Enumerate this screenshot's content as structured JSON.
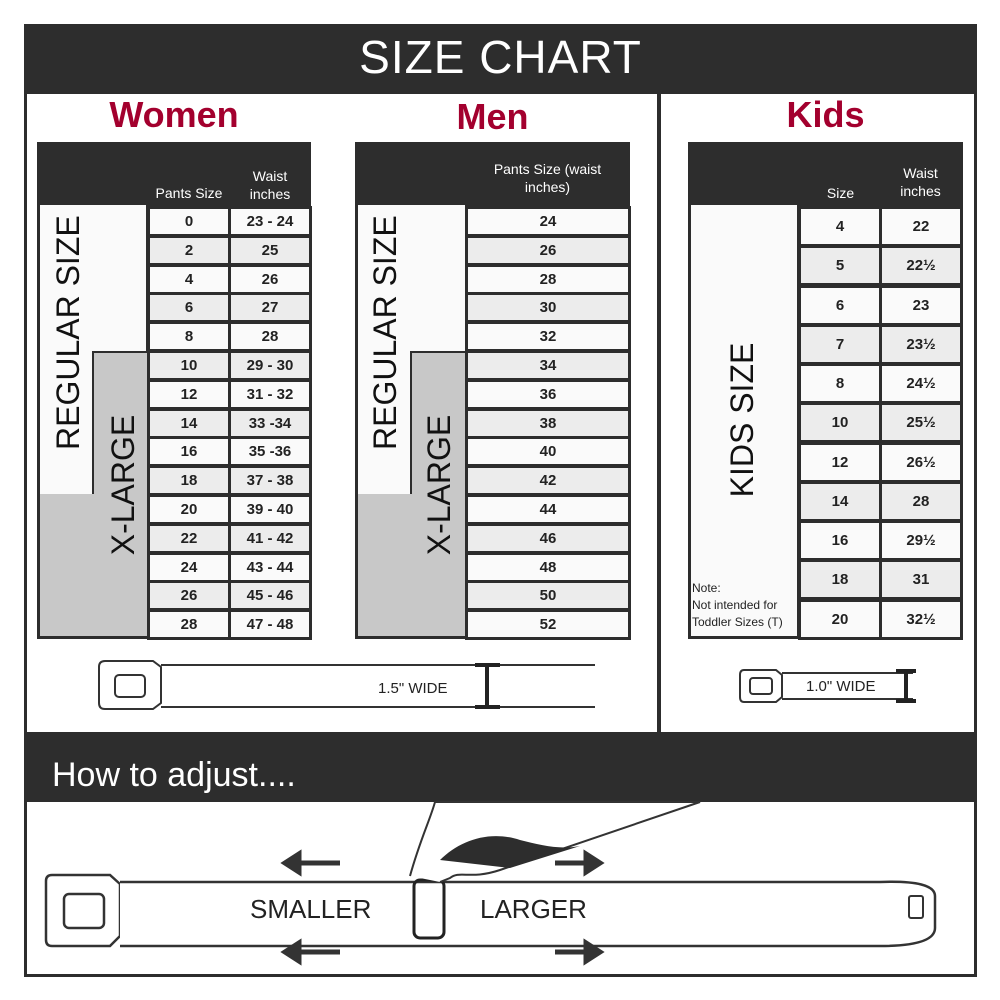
{
  "title": "SIZE CHART",
  "colors": {
    "dark": "#2d2d2d",
    "accent": "#a3002e",
    "xlarge_fill": "#c8c8c8",
    "row_alt": "#ececec"
  },
  "women": {
    "title": "Women",
    "col_headers": [
      "Pants Size",
      "Waist inches"
    ],
    "regular_label": "REGULAR SIZE",
    "xlarge_label": "X-LARGE",
    "rows": [
      [
        "0",
        "23 - 24"
      ],
      [
        "2",
        "25"
      ],
      [
        "4",
        "26"
      ],
      [
        "6",
        "27"
      ],
      [
        "8",
        "28"
      ],
      [
        "10",
        "29 - 30"
      ],
      [
        "12",
        "31 - 32"
      ],
      [
        "14",
        "33 -34"
      ],
      [
        "16",
        "35 -36"
      ],
      [
        "18",
        "37 - 38"
      ],
      [
        "20",
        "39 - 40"
      ],
      [
        "22",
        "41 - 42"
      ],
      [
        "24",
        "43 - 44"
      ],
      [
        "26",
        "45 - 46"
      ],
      [
        "28",
        "47 - 48"
      ]
    ],
    "width_label": "1.5\" WIDE"
  },
  "men": {
    "title": "Men",
    "col_header": "Pants Size (waist inches)",
    "regular_label": "REGULAR SIZE",
    "xlarge_label": "X-LARGE",
    "rows": [
      "24",
      "26",
      "28",
      "30",
      "32",
      "34",
      "36",
      "38",
      "40",
      "42",
      "44",
      "46",
      "48",
      "50",
      "52"
    ]
  },
  "kids": {
    "title": "Kids",
    "col_headers": [
      "Size",
      "Waist inches"
    ],
    "label": "KIDS SIZE",
    "note": [
      "Note:",
      "Not intended for",
      "Toddler Sizes (T)"
    ],
    "rows": [
      [
        "4",
        "22"
      ],
      [
        "5",
        "22½"
      ],
      [
        "6",
        "23"
      ],
      [
        "7",
        "23½"
      ],
      [
        "8",
        "24½"
      ],
      [
        "10",
        "25½"
      ],
      [
        "12",
        "26½"
      ],
      [
        "14",
        "28"
      ],
      [
        "16",
        "29½"
      ],
      [
        "18",
        "31"
      ],
      [
        "20",
        "32½"
      ]
    ],
    "width_label": "1.0\" WIDE"
  },
  "adjust": {
    "title": "How to adjust....",
    "smaller": "SMALLER",
    "larger": "LARGER"
  }
}
